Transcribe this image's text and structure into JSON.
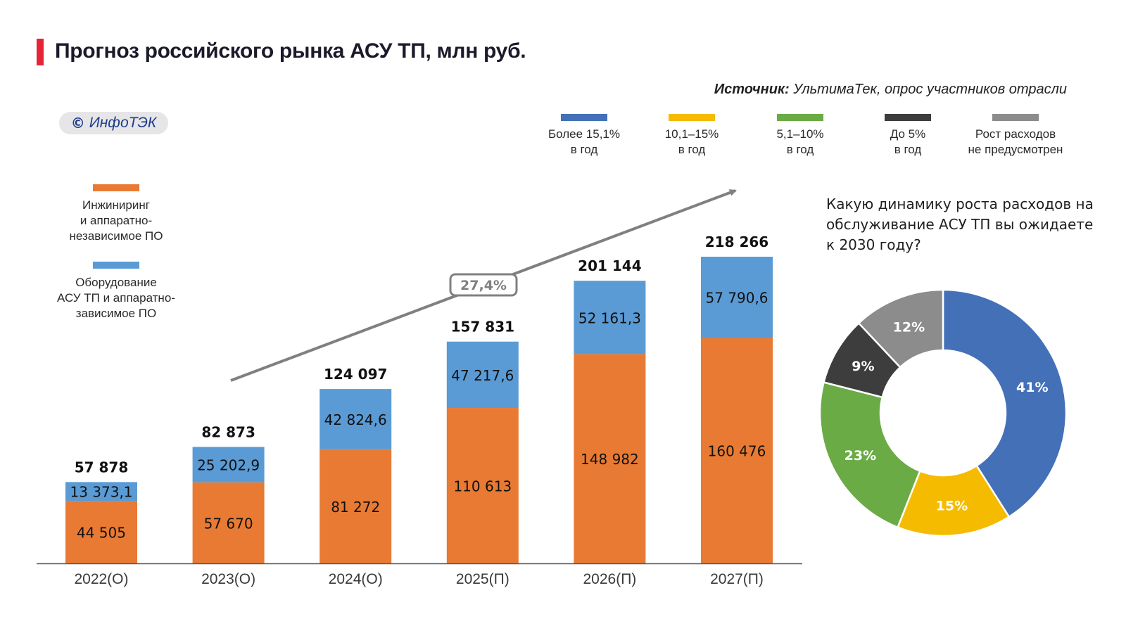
{
  "header": {
    "title": "Прогноз российского рынка АСУ ТП, млн руб.",
    "source_label": "Источник:",
    "source_text": "УльтимаТек, опрос участников отрасли",
    "badge_copyright": "©",
    "badge_name": "ИнфоТЭК"
  },
  "colors": {
    "accent_red": "#e52535",
    "engineering": "#e87a33",
    "equipment": "#5a9bd5",
    "axis": "#595959",
    "trend": "#808080"
  },
  "chart_data": [
    {
      "type": "bar",
      "stacked": true,
      "title": "Прогноз российского рынка АСУ ТП, млн руб.",
      "xlabel": "",
      "ylabel": "млн руб.",
      "ylim": [
        0,
        218266
      ],
      "grid": false,
      "legend_position": "left",
      "categories": [
        "2022(О)",
        "2023(О)",
        "2024(О)",
        "2025(П)",
        "2026(П)",
        "2027(П)"
      ],
      "series": [
        {
          "name": "Инжиниринг и аппаратно-независимое ПО",
          "legend_lines": [
            "Инжиниринг",
            "и аппаратно-",
            "независимое ПО"
          ],
          "color": "#e87a33",
          "values": [
            44505,
            57670,
            81272,
            110613,
            148982,
            160476
          ],
          "labels": [
            "44 505",
            "57 670",
            "81 272",
            "110 613",
            "148 982",
            "160 476"
          ]
        },
        {
          "name": "Оборудование АСУ ТП и аппаратно-зависимое ПО",
          "legend_lines": [
            "Оборудование",
            "АСУ ТП и аппаратно-",
            "зависимое ПО"
          ],
          "color": "#5a9bd5",
          "values": [
            13373.1,
            25202.9,
            42824.6,
            47217.6,
            52161.3,
            57790.6
          ],
          "labels": [
            "13 373,1",
            "25 202,9",
            "42 824,6",
            "47 217,6",
            "52 161,3",
            "57 790,6"
          ]
        }
      ],
      "totals": [
        57878,
        82873,
        124097,
        157831,
        201144,
        218266
      ],
      "total_labels": [
        "57 878",
        "82 873",
        "124 097",
        "157 831",
        "201 144",
        "218 266"
      ],
      "annotations": [
        {
          "type": "trend-arrow",
          "text": "27,4%"
        }
      ]
    },
    {
      "type": "pie",
      "donut": true,
      "title": "Какую динамику роста расходов на обслуживание АСУ ТП вы ожидаете к 2030 году?",
      "legend_position": "top",
      "slices": [
        {
          "name": "Более 15,1% в год",
          "legend_lines": [
            "Более 15,1%",
            "в год"
          ],
          "value": 41,
          "label": "41%",
          "color": "#4470b8"
        },
        {
          "name": "10,1–15% в год",
          "legend_lines": [
            "10,1–15%",
            "в год"
          ],
          "value": 15,
          "label": "15%",
          "color": "#f5bb00"
        },
        {
          "name": "5,1–10% в год",
          "legend_lines": [
            "5,1–10%",
            "в год"
          ],
          "value": 23,
          "label": "23%",
          "color": "#6aab45"
        },
        {
          "name": "До 5% в год",
          "legend_lines": [
            "До 5%",
            "в год"
          ],
          "value": 9,
          "label": "9%",
          "color": "#3d3d3d"
        },
        {
          "name": "Рост расходов не предусмотрен",
          "legend_lines": [
            "Рост расходов",
            "не предусмотрен"
          ],
          "value": 12,
          "label": "12%",
          "color": "#8c8c8c"
        }
      ]
    }
  ]
}
